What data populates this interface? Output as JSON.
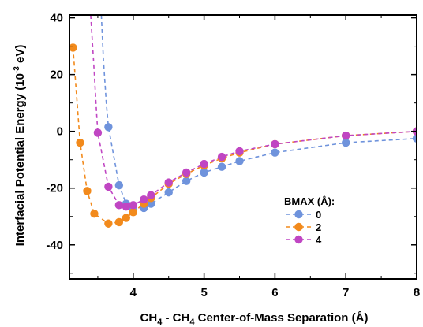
{
  "chart_data": {
    "type": "line",
    "xlabel": {
      "main": "CH",
      "sub1": "4",
      "mid": " - CH",
      "sub2": "4",
      "rest": " Center-of-Mass Separation (Å)"
    },
    "ylabel": {
      "main": "Interfacial Potential Energy (10",
      "sup": "-3",
      "rest": " eV)"
    },
    "xlim": [
      3.1,
      8.0
    ],
    "ylim": [
      -52,
      41
    ],
    "x_ticks": [
      4,
      5,
      6,
      7,
      8
    ],
    "y_ticks": [
      -40,
      -20,
      0,
      20,
      40
    ],
    "legend": {
      "title": "BMAX (Å):",
      "placement": "center-right"
    },
    "series": [
      {
        "name": "0",
        "color": "#6f93dc",
        "x": [
          3.65,
          3.8,
          3.9,
          4.0,
          4.15,
          4.25,
          4.5,
          4.75,
          5.0,
          5.25,
          5.5,
          6.0,
          7.0,
          8.0
        ],
        "y": [
          1.5,
          -19,
          -25.5,
          -27,
          -27,
          -25.5,
          -21.5,
          -17.5,
          -14.5,
          -12.5,
          -10.5,
          -7.5,
          -4,
          -2.5
        ],
        "curve_x": [
          3.55,
          3.58,
          3.62
        ],
        "curve_y": [
          41,
          25,
          10
        ]
      },
      {
        "name": "2",
        "color": "#f28a1c",
        "x": [
          3.15,
          3.25,
          3.35,
          3.45,
          3.65,
          3.8,
          3.9,
          4.0,
          4.15,
          4.25,
          4.5,
          4.75,
          5.0,
          5.25,
          5.5,
          6.0,
          7.0,
          8.0
        ],
        "y": [
          29.5,
          -4,
          -21,
          -29,
          -32.5,
          -32,
          -30.5,
          -28.5,
          -25.5,
          -23.5,
          -18.5,
          -15,
          -12,
          -9.5,
          -7.5,
          -4.5,
          -1.5,
          0
        ],
        "curve_x": [],
        "curve_y": []
      },
      {
        "name": "4",
        "color": "#c046c3",
        "x": [
          3.5,
          3.65,
          3.8,
          3.9,
          4.0,
          4.15,
          4.25,
          4.5,
          4.75,
          5.0,
          5.25,
          5.5,
          6.0,
          7.0,
          8.0
        ],
        "y": [
          -0.5,
          -19.5,
          -26,
          -26.5,
          -26,
          -24,
          -22.5,
          -18,
          -14.5,
          -11.5,
          -9,
          -7,
          -4.5,
          -1.5,
          0
        ],
        "curve_x": [
          3.4,
          3.44,
          3.47
        ],
        "curve_y": [
          41,
          25,
          12
        ]
      }
    ]
  }
}
